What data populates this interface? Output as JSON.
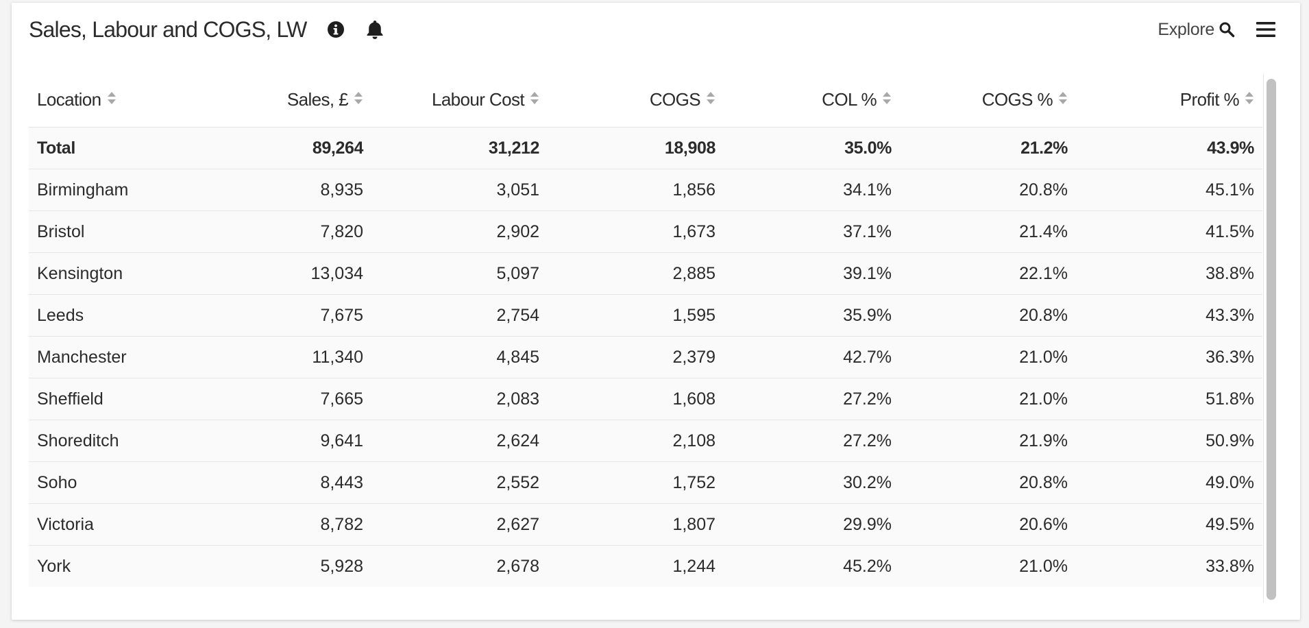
{
  "header": {
    "title": "Sales, Labour and COGS, LW",
    "explore_label": "Explore"
  },
  "icons": {
    "info": "info-circle-icon",
    "bell": "bell-icon",
    "search": "search-icon",
    "menu": "hamburger-menu-icon",
    "sort": "sort-icon"
  },
  "table": {
    "columns": [
      "Location",
      "Sales, £",
      "Labour Cost",
      "COGS",
      "COL %",
      "COGS %",
      "Profit %"
    ],
    "total": [
      "Total",
      "89,264",
      "31,212",
      "18,908",
      "35.0%",
      "21.2%",
      "43.9%"
    ],
    "rows": [
      [
        "Birmingham",
        "8,935",
        "3,051",
        "1,856",
        "34.1%",
        "20.8%",
        "45.1%"
      ],
      [
        "Bristol",
        "7,820",
        "2,902",
        "1,673",
        "37.1%",
        "21.4%",
        "41.5%"
      ],
      [
        "Kensington",
        "13,034",
        "5,097",
        "2,885",
        "39.1%",
        "22.1%",
        "38.8%"
      ],
      [
        "Leeds",
        "7,675",
        "2,754",
        "1,595",
        "35.9%",
        "20.8%",
        "43.3%"
      ],
      [
        "Manchester",
        "11,340",
        "4,845",
        "2,379",
        "42.7%",
        "21.0%",
        "36.3%"
      ],
      [
        "Sheffield",
        "7,665",
        "2,083",
        "1,608",
        "27.2%",
        "21.0%",
        "51.8%"
      ],
      [
        "Shoreditch",
        "9,641",
        "2,624",
        "2,108",
        "27.2%",
        "21.9%",
        "50.9%"
      ],
      [
        "Soho",
        "8,443",
        "2,552",
        "1,752",
        "30.2%",
        "20.8%",
        "49.0%"
      ],
      [
        "Victoria",
        "8,782",
        "2,627",
        "1,807",
        "29.9%",
        "20.6%",
        "49.5%"
      ],
      [
        "York",
        "5,928",
        "2,678",
        "1,244",
        "45.2%",
        "21.0%",
        "33.8%"
      ]
    ]
  }
}
